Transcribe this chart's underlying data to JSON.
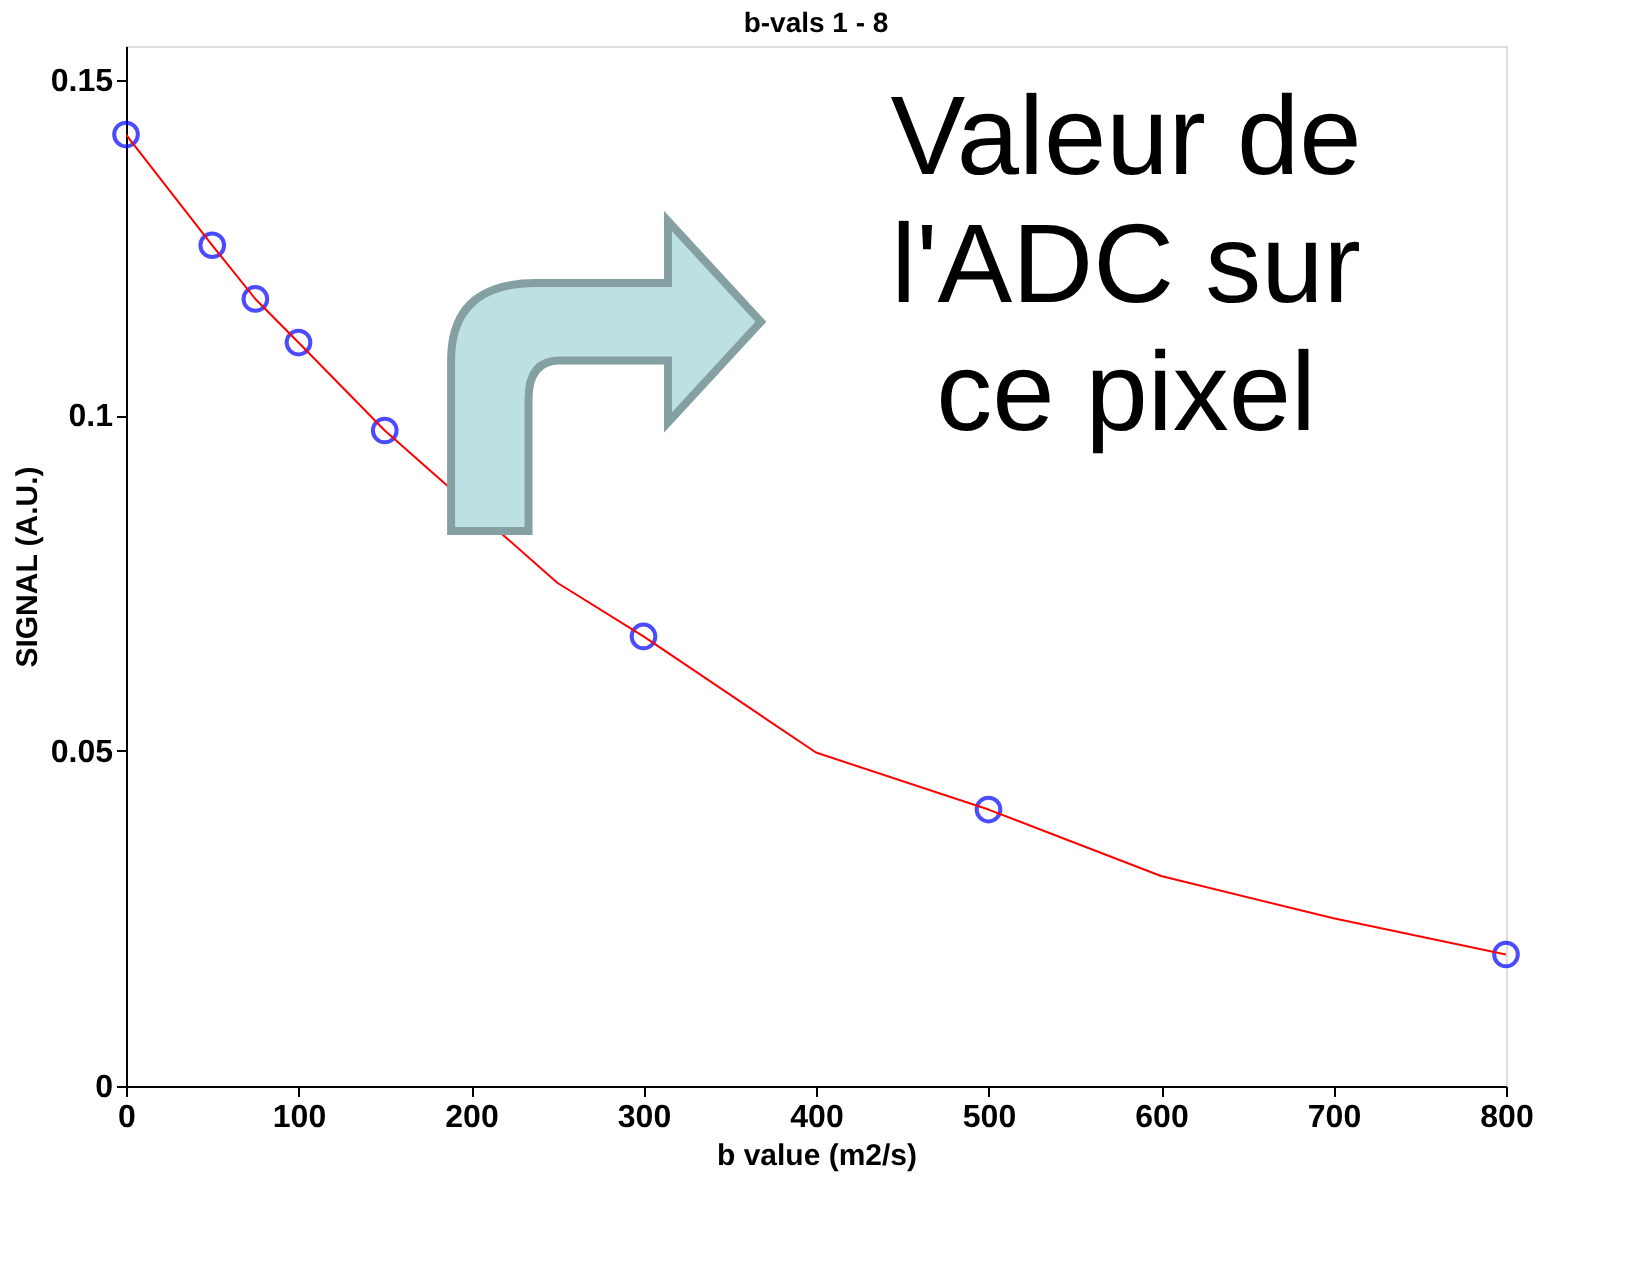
{
  "chart_data": {
    "type": "scatter",
    "title": "b-vals 1 - 8",
    "xlabel": "b value (m2/s)",
    "ylabel": "SIGNAL (A.U.)",
    "annotations": [
      "Valeur de\nl'ADC sur\nce pixel"
    ],
    "x": [
      0,
      50,
      75,
      100,
      150,
      300,
      500,
      800
    ],
    "series": [
      {
        "color": "#0000ff",
        "marker": "circle",
        "values": [
          0.1418,
          0.1253,
          0.1173,
          0.1108,
          0.0977,
          0.067,
          0.0412,
          0.0196
        ]
      },
      {
        "type": "line",
        "color": "#ff0000",
        "x": [
          0,
          50,
          75,
          100,
          150,
          250,
          300,
          400,
          500,
          600,
          700,
          800
        ],
        "values": [
          0.1418,
          0.1253,
          0.1173,
          0.1108,
          0.0977,
          0.075,
          0.067,
          0.0497,
          0.0412,
          0.0313,
          0.025,
          0.0196
        ]
      }
    ],
    "xlim": [
      0,
      800
    ],
    "ylim": [
      0,
      0.155
    ],
    "xticks": [
      0,
      100,
      200,
      300,
      400,
      500,
      600,
      700,
      800
    ],
    "yticks": [
      0,
      0.05,
      0.1,
      0.15
    ],
    "grid": false
  }
}
